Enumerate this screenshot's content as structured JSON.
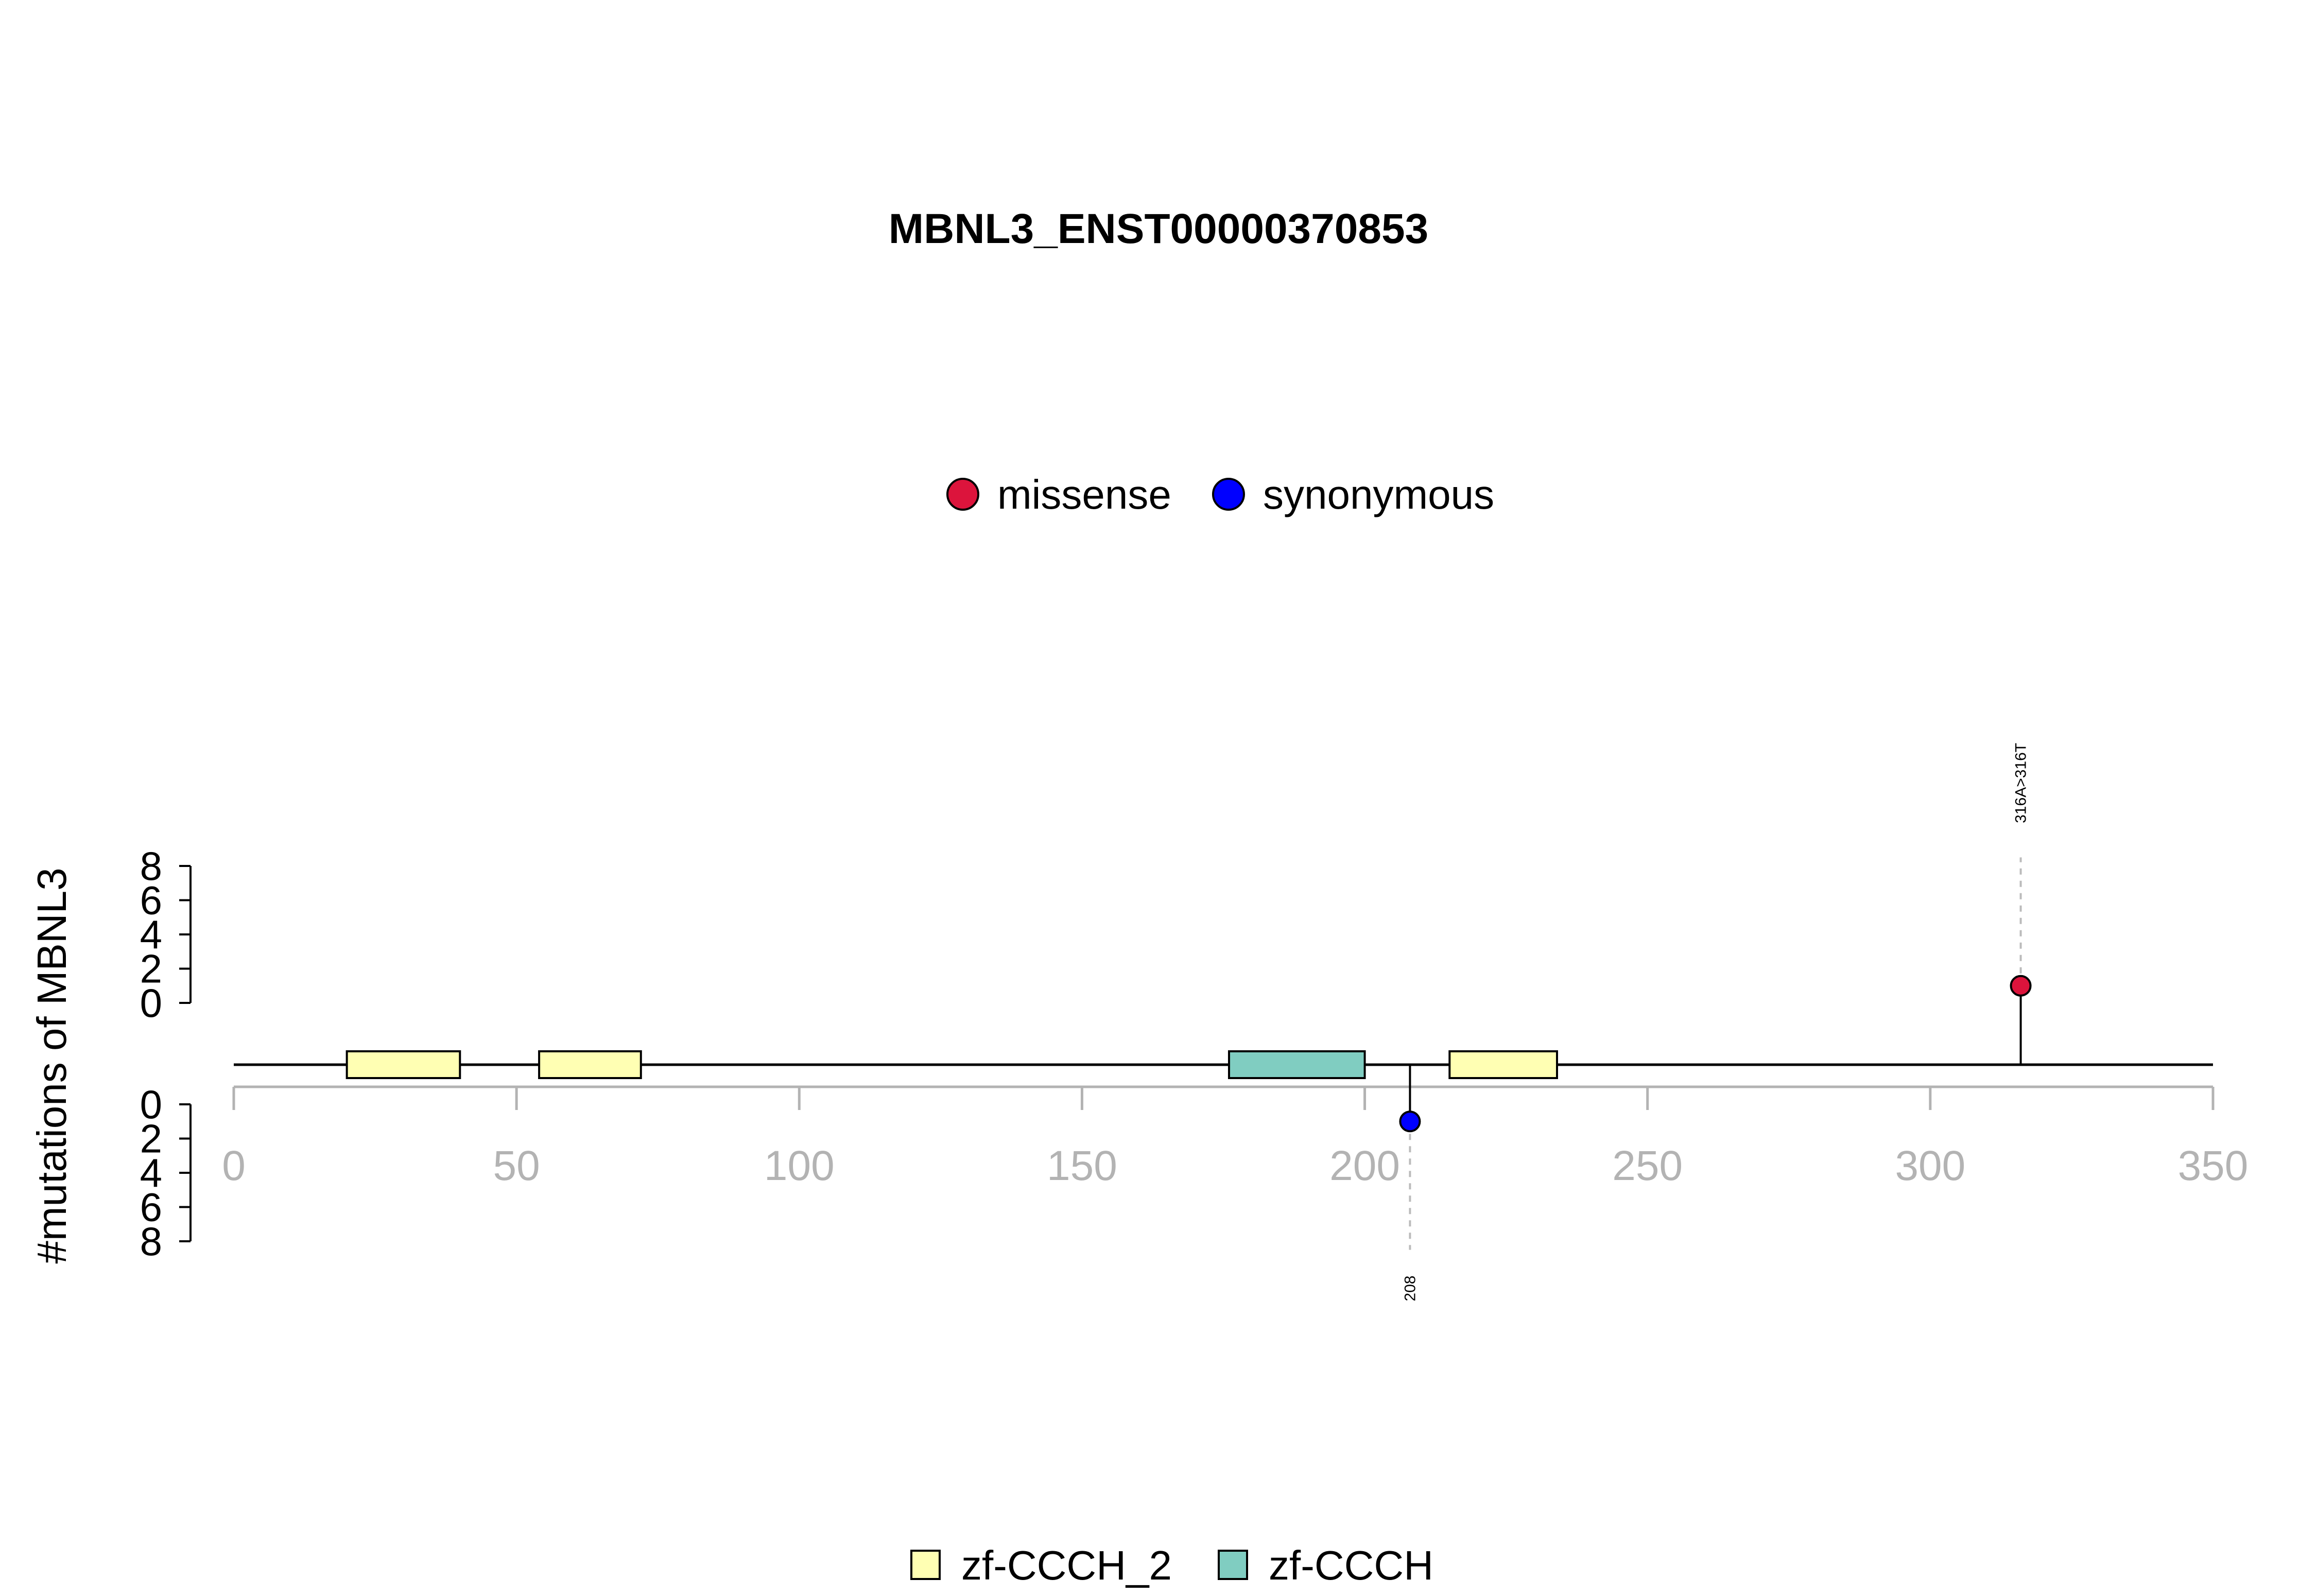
{
  "chart_data": {
    "type": "lollipop",
    "title": "MBNL3_ENST00000370853",
    "ylabel": "#mutations of MBNL3",
    "xlim": [
      0,
      350
    ],
    "x_ticks": [
      0,
      50,
      100,
      150,
      200,
      250,
      300,
      350
    ],
    "upper_y_ticks": [
      0,
      2,
      4,
      6,
      8
    ],
    "lower_y_ticks": [
      0,
      2,
      4,
      6,
      8
    ],
    "mutation_legend": [
      {
        "label": "missense",
        "color": "#dc143c"
      },
      {
        "label": "synonymous",
        "color": "#0000ff"
      }
    ],
    "domain_legend": [
      {
        "label": "zf-CCCH_2",
        "color": "#ffffb3"
      },
      {
        "label": "zf-CCCH",
        "color": "#80cdc1"
      }
    ],
    "domains": [
      {
        "name": "zf-CCCH_2",
        "start": 20,
        "end": 40,
        "color": "#ffffb3"
      },
      {
        "name": "zf-CCCH_2",
        "start": 54,
        "end": 72,
        "color": "#ffffb3"
      },
      {
        "name": "zf-CCCH",
        "start": 176,
        "end": 200,
        "color": "#80cdc1"
      },
      {
        "name": "zf-CCCH_2",
        "start": 215,
        "end": 234,
        "color": "#ffffb3"
      }
    ],
    "mutations": [
      {
        "position": 316,
        "count": 1,
        "type": "missense",
        "label": "316A>316T",
        "side": "top",
        "color": "#dc143c"
      },
      {
        "position": 208,
        "count": 1,
        "type": "synonymous",
        "label": "208",
        "side": "bottom",
        "color": "#0000ff"
      }
    ],
    "colors": {
      "axis_gray": "#b3b3b3",
      "line": "#000000",
      "guide": "#bbbbbb"
    }
  }
}
